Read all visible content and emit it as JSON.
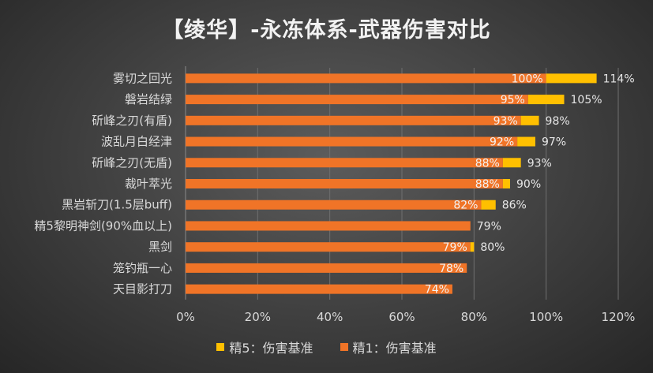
{
  "chart_data": {
    "type": "bar",
    "orientation": "horizontal",
    "title": "【绫华】-永冻体系-武器伤害对比",
    "categories": [
      "雾切之回光",
      "磐岩结绿",
      "斫峰之刃(有盾)",
      "波乱月白经津",
      "斫峰之刃(无盾)",
      "裁叶萃光",
      "黑岩斩刀(1.5层buff)",
      "精5黎明神剑(90%血以上)",
      "黑剑",
      "笼钓瓶一心",
      "天目影打刀"
    ],
    "series": [
      {
        "name": "精1：伤害基准",
        "color": "#f07427",
        "values": [
          100,
          95,
          93,
          92,
          88,
          88,
          82,
          79,
          79,
          78,
          74
        ],
        "labels": [
          "100%",
          "95%",
          "93%",
          "92%",
          "88%",
          "88%",
          "82%",
          "",
          "79%",
          "78%",
          "74%"
        ]
      },
      {
        "name": "精5：伤害基准",
        "color": "#ffc000",
        "values": [
          114,
          105,
          98,
          97,
          93,
          90,
          86,
          79,
          80,
          78,
          74
        ],
        "labels": [
          "114%",
          "105%",
          "98%",
          "97%",
          "93%",
          "90%",
          "86%",
          "79%",
          "80%",
          "",
          ""
        ]
      }
    ],
    "xlim": [
      0,
      120
    ],
    "xticks": [
      "0%",
      "20%",
      "40%",
      "60%",
      "80%",
      "100%",
      "120%"
    ],
    "grid": true,
    "legend": "bottom"
  }
}
